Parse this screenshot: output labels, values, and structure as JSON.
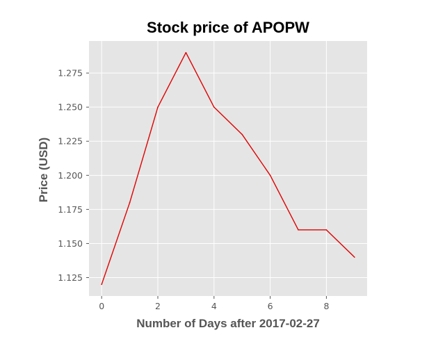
{
  "chart_data": {
    "type": "line",
    "title": "Stock price of APOPW",
    "xlabel": "Number of Days after 2017-02-27",
    "ylabel": "Price (USD)",
    "x": [
      0,
      1,
      2,
      3,
      4,
      5,
      6,
      7,
      8,
      9
    ],
    "series": [
      {
        "name": "APOPW",
        "color": "#e00000",
        "values": [
          1.12,
          1.18,
          1.25,
          1.29,
          1.25,
          1.23,
          1.2,
          1.16,
          1.16,
          1.14
        ]
      }
    ],
    "xlim": [
      -0.45,
      9.45
    ],
    "ylim": [
      1.1115,
      1.2985
    ],
    "xticks": [
      0,
      2,
      4,
      6,
      8
    ],
    "xtick_labels": [
      "0",
      "2",
      "4",
      "6",
      "8"
    ],
    "yticks": [
      1.125,
      1.15,
      1.175,
      1.2,
      1.225,
      1.25,
      1.275
    ],
    "ytick_labels": [
      "1.125",
      "1.150",
      "1.175",
      "1.200",
      "1.225",
      "1.250",
      "1.275"
    ],
    "grid": true,
    "style": "ggplot",
    "background_color": "#e5e5e5",
    "grid_color": "#ffffff"
  }
}
